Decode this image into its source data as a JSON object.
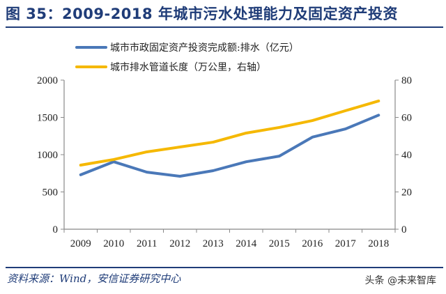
{
  "title": "图 35：2009-2018 年城市污水处理能力及固定资产投资",
  "source": "资料来源：Wind，安信证券研究中心",
  "watermark": "头条 @未来智库",
  "chart_data": {
    "type": "line",
    "categories": [
      "2009",
      "2010",
      "2011",
      "2012",
      "2013",
      "2014",
      "2015",
      "2016",
      "2017",
      "2018"
    ],
    "series": [
      {
        "name": "城市市政固定资产投资完成额:排水（亿元）",
        "axis": "left",
        "color": "#4a78b8",
        "values": [
          730,
          905,
          765,
          710,
          785,
          905,
          980,
          1235,
          1345,
          1530
        ]
      },
      {
        "name": "城市排水管道长度（万公里，右轴）",
        "axis": "right",
        "color": "#f5b800",
        "values": [
          34.4,
          37.4,
          41.5,
          44.1,
          46.7,
          51.6,
          54.6,
          58.3,
          63.6,
          68.8
        ]
      }
    ],
    "y_left": {
      "range": [
        0,
        2000
      ],
      "ticks": [
        "0",
        "500",
        "1000",
        "1500",
        "2000"
      ]
    },
    "y_right": {
      "range": [
        0,
        80
      ],
      "ticks": [
        "0",
        "20",
        "40",
        "60",
        "80"
      ]
    },
    "legend": "top",
    "grid": false
  }
}
